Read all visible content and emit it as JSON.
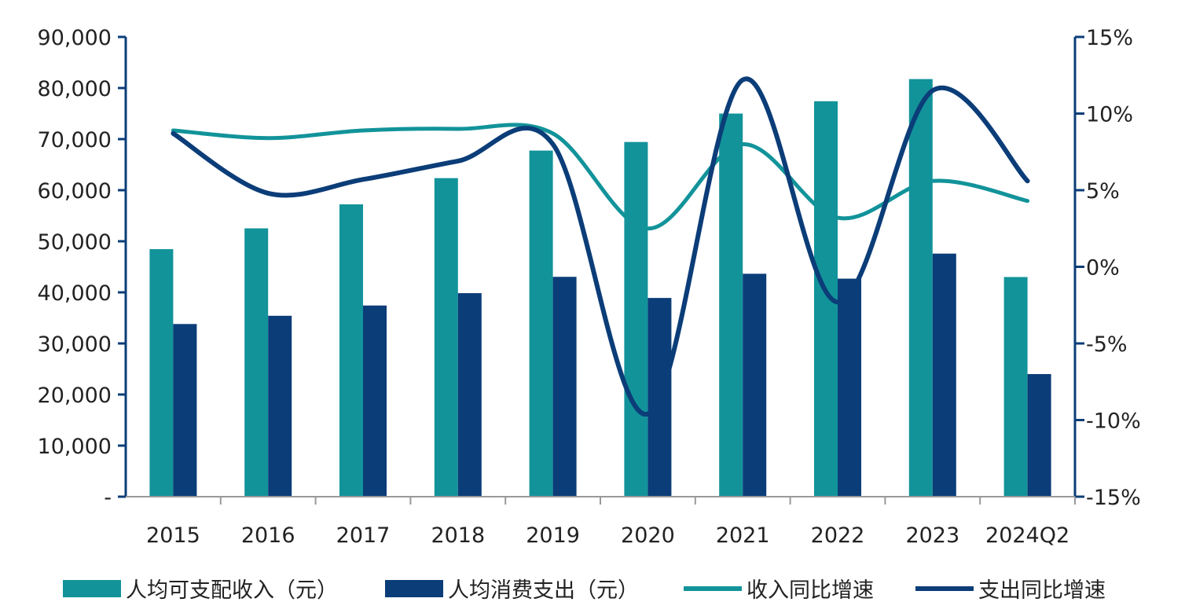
{
  "chart_data": {
    "type": "bar",
    "title": "",
    "categories": [
      "2015",
      "2016",
      "2017",
      "2018",
      "2019",
      "2020",
      "2021",
      "2022",
      "2023",
      "2024Q2"
    ],
    "series": [
      {
        "name": "人均可支配收入（元）",
        "kind": "bar",
        "axis": "left",
        "color": "#12939A",
        "values": [
          48458,
          52530,
          57230,
          62361,
          67756,
          69434,
          75002,
          77415,
          81752,
          43000
        ]
      },
      {
        "name": "人均消费支出（元）",
        "kind": "bar",
        "axis": "left",
        "color": "#0B3D78",
        "values": [
          33803,
          35416,
          37425,
          39843,
          43038,
          38903,
          43640,
          42683,
          47586,
          24000
        ]
      },
      {
        "name": "收入同比增速",
        "kind": "line",
        "axis": "right",
        "color": "#12939A",
        "values": [
          8.9,
          8.4,
          8.9,
          9.0,
          8.7,
          2.5,
          8.0,
          3.2,
          5.6,
          4.3
        ]
      },
      {
        "name": "支出同比增速",
        "kind": "line",
        "axis": "right",
        "color": "#0B3D78",
        "values": [
          8.7,
          4.8,
          5.7,
          6.9,
          8.0,
          -9.6,
          12.2,
          -2.3,
          11.5,
          5.6
        ]
      }
    ],
    "y_left": {
      "min": 0,
      "max": 90000,
      "ticks": [
        "-",
        "10,000",
        "20,000",
        "30,000",
        "40,000",
        "50,000",
        "60,000",
        "70,000",
        "80,000",
        "90,000"
      ]
    },
    "y_right": {
      "min": -15,
      "max": 15,
      "ticks": [
        "-15%",
        "-10%",
        "-5%",
        "0%",
        "5%",
        "10%",
        "15%"
      ]
    },
    "grid": false,
    "legend_position": "bottom",
    "axis_color": "#0B3D78"
  }
}
